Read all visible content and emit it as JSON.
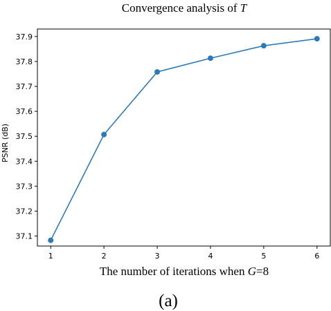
{
  "chart_data": {
    "type": "line",
    "title_prefix": "Convergence analysis of ",
    "title_var": "T",
    "xlabel_prefix": "The number of iterations when ",
    "xlabel_var": "G",
    "xlabel_suffix": "=8",
    "ylabel": "PSNR (dB)",
    "caption": "(a)",
    "x": [
      1,
      2,
      3,
      4,
      5,
      6
    ],
    "series": [
      {
        "values": [
          37.083,
          37.507,
          37.758,
          37.813,
          37.863,
          37.891
        ],
        "color": "#2b7bba",
        "marker": "circle"
      }
    ],
    "xlim": [
      0.75,
      6.25
    ],
    "ylim": [
      37.06,
      37.93
    ],
    "xticks": [
      1,
      2,
      3,
      4,
      5,
      6
    ],
    "yticks": [
      37.1,
      37.2,
      37.3,
      37.4,
      37.5,
      37.6,
      37.7,
      37.8,
      37.9
    ],
    "ytick_labels": [
      "37.1",
      "37.2",
      "37.3",
      "37.4",
      "37.5",
      "37.6",
      "37.7",
      "37.8",
      "37.9"
    ],
    "grid": false,
    "legend": false
  }
}
